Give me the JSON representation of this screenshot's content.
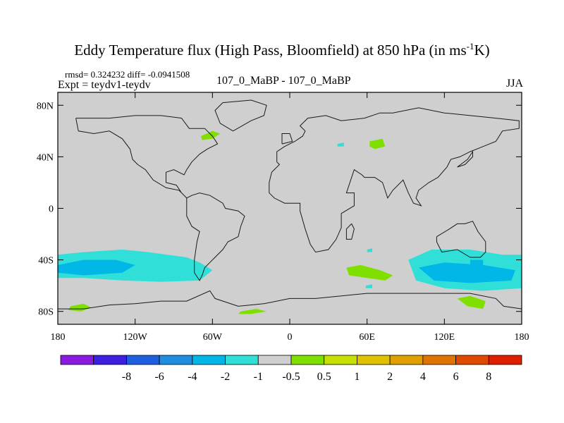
{
  "chart_data": {
    "type": "heatmap",
    "title_main": "Eddy Temperature flux (High Pass, Bloomfield) at 850 hPa (in ms",
    "title_sup": "-1",
    "title_end": "K)",
    "stats_text": "rmsd= 0.324232  diff= -0.0941508",
    "expt_text": "Expt = teydv1-teydv",
    "center_text": "107_0_MaBP - 107_0_MaBP",
    "season": "JJA",
    "xlim": [
      -180,
      180
    ],
    "ylim": [
      -90,
      90
    ],
    "x_ticks": [
      {
        "value": -180,
        "label": "180"
      },
      {
        "value": -120,
        "label": "120W"
      },
      {
        "value": -60,
        "label": "60W"
      },
      {
        "value": 0,
        "label": "0"
      },
      {
        "value": 60,
        "label": "60E"
      },
      {
        "value": 120,
        "label": "120E"
      },
      {
        "value": 180,
        "label": "180"
      }
    ],
    "y_ticks": [
      {
        "value": 80,
        "label": "80N"
      },
      {
        "value": 40,
        "label": "40N"
      },
      {
        "value": 0,
        "label": "0"
      },
      {
        "value": -40,
        "label": "40S"
      },
      {
        "value": -80,
        "label": "80S"
      }
    ],
    "colorbar": {
      "colors": [
        "#8b1ae0",
        "#3c1fe0",
        "#1e5fe0",
        "#1e8fe0",
        "#00b7e8",
        "#30e0d8",
        "#cfcfcf",
        "#7fe000",
        "#c6e000",
        "#e0c200",
        "#e0a000",
        "#e07400",
        "#e04a00",
        "#e01e00"
      ],
      "labels": [
        "-8",
        "-6",
        "-4",
        "-2",
        "-1",
        "-0.5",
        "0.5",
        "1",
        "2",
        "4",
        "6",
        "8"
      ]
    },
    "regions": [
      {
        "level": "-1 to -0.5",
        "color": "#30e0d8",
        "points": [
          [
            -180,
            -36
          ],
          [
            -160,
            -34
          ],
          [
            -130,
            -32
          ],
          [
            -110,
            -34
          ],
          [
            -80,
            -38
          ],
          [
            -70,
            -42
          ],
          [
            -60,
            -48
          ],
          [
            -70,
            -56
          ],
          [
            -100,
            -57
          ],
          [
            -130,
            -56
          ],
          [
            -160,
            -54
          ],
          [
            -180,
            -54
          ]
        ]
      },
      {
        "level": "-2 to -1",
        "color": "#00b7e8",
        "points": [
          [
            -180,
            -44
          ],
          [
            -160,
            -40
          ],
          [
            -135,
            -40
          ],
          [
            -120,
            -44
          ],
          [
            -130,
            -50
          ],
          [
            -160,
            -52
          ],
          [
            -180,
            -50
          ]
        ]
      },
      {
        "level": "-1 to -0.5",
        "color": "#30e0d8",
        "points": [
          [
            92,
            -40
          ],
          [
            110,
            -32
          ],
          [
            140,
            -32
          ],
          [
            165,
            -36
          ],
          [
            180,
            -36
          ],
          [
            180,
            -62
          ],
          [
            150,
            -64
          ],
          [
            120,
            -62
          ],
          [
            98,
            -56
          ]
        ]
      },
      {
        "level": "-2 to -1",
        "color": "#00b7e8",
        "points": [
          [
            100,
            -46
          ],
          [
            120,
            -42
          ],
          [
            150,
            -44
          ],
          [
            175,
            -48
          ],
          [
            172,
            -56
          ],
          [
            140,
            -58
          ],
          [
            112,
            -56
          ]
        ]
      },
      {
        "level": "-2 to -1",
        "color": "#00b7e8",
        "points": [
          [
            140,
            -40
          ],
          [
            150,
            -40
          ],
          [
            150,
            -48
          ],
          [
            140,
            -48
          ]
        ]
      },
      {
        "level": "0.5 to 1",
        "color": "#7fe000",
        "points": [
          [
            44,
            -46
          ],
          [
            55,
            -44
          ],
          [
            70,
            -48
          ],
          [
            80,
            -52
          ],
          [
            74,
            -56
          ],
          [
            60,
            -54
          ],
          [
            46,
            -52
          ]
        ]
      },
      {
        "level": "0.5 to 1",
        "color": "#7fe000",
        "points": [
          [
            130,
            -70
          ],
          [
            140,
            -68
          ],
          [
            152,
            -72
          ],
          [
            150,
            -78
          ],
          [
            138,
            -76
          ]
        ]
      },
      {
        "level": "0.5 to 1",
        "color": "#7fe000",
        "points": [
          [
            -170,
            -76
          ],
          [
            -160,
            -74
          ],
          [
            -154,
            -77
          ],
          [
            -162,
            -80
          ],
          [
            -172,
            -79
          ]
        ]
      },
      {
        "level": "0.5 to 1",
        "color": "#7fe000",
        "points": [
          [
            -38,
            -80
          ],
          [
            -26,
            -78
          ],
          [
            -18,
            -80
          ],
          [
            -30,
            -82
          ],
          [
            -40,
            -82
          ]
        ]
      },
      {
        "level": "0.5 to 1",
        "color": "#7fe000",
        "points": [
          [
            -69,
            56
          ],
          [
            -60,
            60
          ],
          [
            -54,
            58
          ],
          [
            -60,
            54
          ],
          [
            -68,
            53
          ]
        ]
      },
      {
        "level": "0.5 to 1",
        "color": "#7fe000",
        "points": [
          [
            62,
            52
          ],
          [
            72,
            54
          ],
          [
            74,
            48
          ],
          [
            66,
            46
          ],
          [
            62,
            48
          ]
        ]
      },
      {
        "level": "-1 to -0.5",
        "color": "#30e0d8",
        "points": [
          [
            37,
            50
          ],
          [
            42,
            51
          ],
          [
            42,
            48
          ],
          [
            37,
            48
          ]
        ]
      },
      {
        "level": "-1 to -0.5",
        "color": "#30e0d8",
        "points": [
          [
            59,
            -60
          ],
          [
            64,
            -59
          ],
          [
            64,
            -62
          ],
          [
            59,
            -62
          ]
        ]
      },
      {
        "level": "-1 to -0.5",
        "color": "#30e0d8",
        "points": [
          [
            60,
            -32
          ],
          [
            64,
            -31
          ],
          [
            64,
            -34
          ],
          [
            60,
            -34
          ]
        ]
      }
    ],
    "coastlines": [
      [
        [
          -10,
          36
        ],
        [
          -10,
          44
        ],
        [
          -4,
          48
        ],
        [
          0,
          50
        ],
        [
          4,
          52
        ],
        [
          10,
          56
        ],
        [
          12,
          60
        ],
        [
          8,
          64
        ],
        [
          14,
          70
        ],
        [
          28,
          72
        ],
        [
          40,
          68
        ],
        [
          58,
          70
        ],
        [
          70,
          74
        ],
        [
          80,
          74
        ],
        [
          100,
          78
        ],
        [
          120,
          74
        ],
        [
          140,
          72
        ],
        [
          160,
          70
        ],
        [
          178,
          68
        ],
        [
          178,
          62
        ],
        [
          165,
          60
        ],
        [
          160,
          52
        ],
        [
          150,
          48
        ],
        [
          140,
          44
        ],
        [
          132,
          40
        ],
        [
          125,
          38
        ],
        [
          122,
          32
        ],
        [
          115,
          24
        ],
        [
          108,
          20
        ],
        [
          100,
          14
        ],
        [
          98,
          8
        ],
        [
          102,
          2
        ],
        [
          96,
          4
        ],
        [
          92,
          12
        ],
        [
          88,
          22
        ],
        [
          80,
          14
        ],
        [
          76,
          8
        ],
        [
          72,
          20
        ],
        [
          66,
          24
        ],
        [
          58,
          24
        ],
        [
          56,
          26
        ],
        [
          50,
          30
        ],
        [
          44,
          12
        ],
        [
          50,
          12
        ],
        [
          50,
          2
        ],
        [
          40,
          -4
        ],
        [
          40,
          -15
        ],
        [
          36,
          -24
        ],
        [
          30,
          -32
        ],
        [
          20,
          -34
        ],
        [
          16,
          -28
        ],
        [
          12,
          -16
        ],
        [
          8,
          -2
        ],
        [
          8,
          4
        ],
        [
          -4,
          4
        ],
        [
          -12,
          8
        ],
        [
          -16,
          12
        ],
        [
          -16,
          20
        ],
        [
          -14,
          28
        ],
        [
          -8,
          34
        ],
        [
          -10,
          36
        ]
      ],
      [
        [
          -166,
          70
        ],
        [
          -140,
          70
        ],
        [
          -120,
          72
        ],
        [
          -100,
          72
        ],
        [
          -84,
          70
        ],
        [
          -78,
          62
        ],
        [
          -66,
          62
        ],
        [
          -60,
          56
        ],
        [
          -56,
          50
        ],
        [
          -64,
          46
        ],
        [
          -70,
          42
        ],
        [
          -76,
          36
        ],
        [
          -80,
          30
        ],
        [
          -82,
          26
        ],
        [
          -90,
          30
        ],
        [
          -96,
          28
        ],
        [
          -96,
          20
        ],
        [
          -88,
          18
        ],
        [
          -84,
          12
        ],
        [
          -80,
          8
        ],
        [
          -86,
          14
        ],
        [
          -96,
          16
        ],
        [
          -106,
          22
        ],
        [
          -112,
          30
        ],
        [
          -118,
          34
        ],
        [
          -122,
          38
        ],
        [
          -124,
          46
        ],
        [
          -130,
          54
        ],
        [
          -140,
          60
        ],
        [
          -152,
          58
        ],
        [
          -164,
          60
        ],
        [
          -166,
          70
        ]
      ],
      [
        [
          -80,
          8
        ],
        [
          -76,
          10
        ],
        [
          -70,
          12
        ],
        [
          -62,
          10
        ],
        [
          -52,
          4
        ],
        [
          -50,
          0
        ],
        [
          -40,
          -2
        ],
        [
          -35,
          -6
        ],
        [
          -38,
          -14
        ],
        [
          -40,
          -22
        ],
        [
          -48,
          -26
        ],
        [
          -52,
          -32
        ],
        [
          -58,
          -38
        ],
        [
          -62,
          -42
        ],
        [
          -66,
          -46
        ],
        [
          -68,
          -52
        ],
        [
          -70,
          -56
        ],
        [
          -74,
          -50
        ],
        [
          -74,
          -40
        ],
        [
          -72,
          -26
        ],
        [
          -70,
          -18
        ],
        [
          -76,
          -14
        ],
        [
          -80,
          -6
        ],
        [
          -80,
          2
        ],
        [
          -80,
          8
        ]
      ],
      [
        [
          114,
          -22
        ],
        [
          124,
          -16
        ],
        [
          130,
          -12
        ],
        [
          136,
          -12
        ],
        [
          142,
          -10
        ],
        [
          146,
          -18
        ],
        [
          152,
          -26
        ],
        [
          152,
          -34
        ],
        [
          148,
          -38
        ],
        [
          140,
          -38
        ],
        [
          130,
          -32
        ],
        [
          118,
          -34
        ],
        [
          114,
          -26
        ],
        [
          114,
          -22
        ]
      ],
      [
        [
          -180,
          -78
        ],
        [
          -160,
          -78
        ],
        [
          -140,
          -75
        ],
        [
          -120,
          -74
        ],
        [
          -100,
          -72
        ],
        [
          -80,
          -72
        ],
        [
          -62,
          -64
        ],
        [
          -58,
          -70
        ],
        [
          -40,
          -76
        ],
        [
          -20,
          -74
        ],
        [
          0,
          -70
        ],
        [
          20,
          -70
        ],
        [
          40,
          -68
        ],
        [
          60,
          -66
        ],
        [
          80,
          -66
        ],
        [
          100,
          -66
        ],
        [
          120,
          -66
        ],
        [
          140,
          -66
        ],
        [
          160,
          -70
        ],
        [
          166,
          -76
        ],
        [
          180,
          -78
        ]
      ],
      [
        [
          -52,
          82
        ],
        [
          -30,
          84
        ],
        [
          -18,
          80
        ],
        [
          -20,
          72
        ],
        [
          -30,
          68
        ],
        [
          -44,
          60
        ],
        [
          -54,
          66
        ],
        [
          -58,
          76
        ],
        [
          -52,
          82
        ]
      ],
      [
        [
          48,
          -12
        ],
        [
          50,
          -16
        ],
        [
          48,
          -24
        ],
        [
          44,
          -24
        ],
        [
          44,
          -16
        ],
        [
          48,
          -12
        ]
      ],
      [
        [
          -6,
          50
        ],
        [
          2,
          52
        ],
        [
          0,
          58
        ],
        [
          -6,
          58
        ],
        [
          -6,
          50
        ]
      ],
      [
        [
          130,
          32
        ],
        [
          136,
          34
        ],
        [
          142,
          40
        ],
        [
          142,
          44
        ],
        [
          138,
          38
        ],
        [
          130,
          32
        ]
      ]
    ]
  }
}
